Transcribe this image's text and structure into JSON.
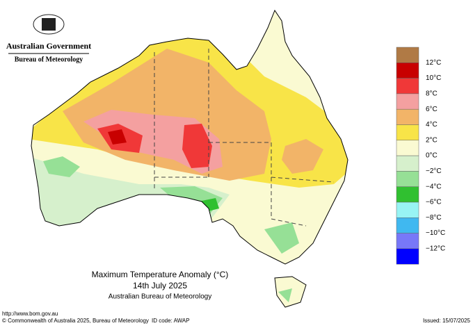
{
  "header": {
    "title": "Australian Government",
    "subtitle": "Bureau of Meteorology"
  },
  "legend": {
    "labels": [
      "12°C",
      "10°C",
      "8°C",
      "6°C",
      "4°C",
      "2°C",
      "0°C",
      "−2°C",
      "−4°C",
      "−6°C",
      "−8°C",
      "−10°C",
      "−12°C"
    ],
    "colors": [
      "#b07a45",
      "#c80000",
      "#f03838",
      "#f4a0a0",
      "#f2b468",
      "#f8e448",
      "#fafad2",
      "#d6f0cc",
      "#96e096",
      "#30c030",
      "#98f4f4",
      "#40b8f0",
      "#7878f8",
      "#0000ff"
    ]
  },
  "title": {
    "line1": "Maximum Temperature Anomaly (°C)",
    "line2": "14th July 2025",
    "line3": "Australian Bureau of Meteorology"
  },
  "footer": {
    "url": "http://www.bom.gov.au",
    "copyright": "© Commonwealth of Australia 2025, Bureau of Meteorology",
    "id": "ID code: AWAP",
    "issued": "Issued: 15/07/2025"
  }
}
